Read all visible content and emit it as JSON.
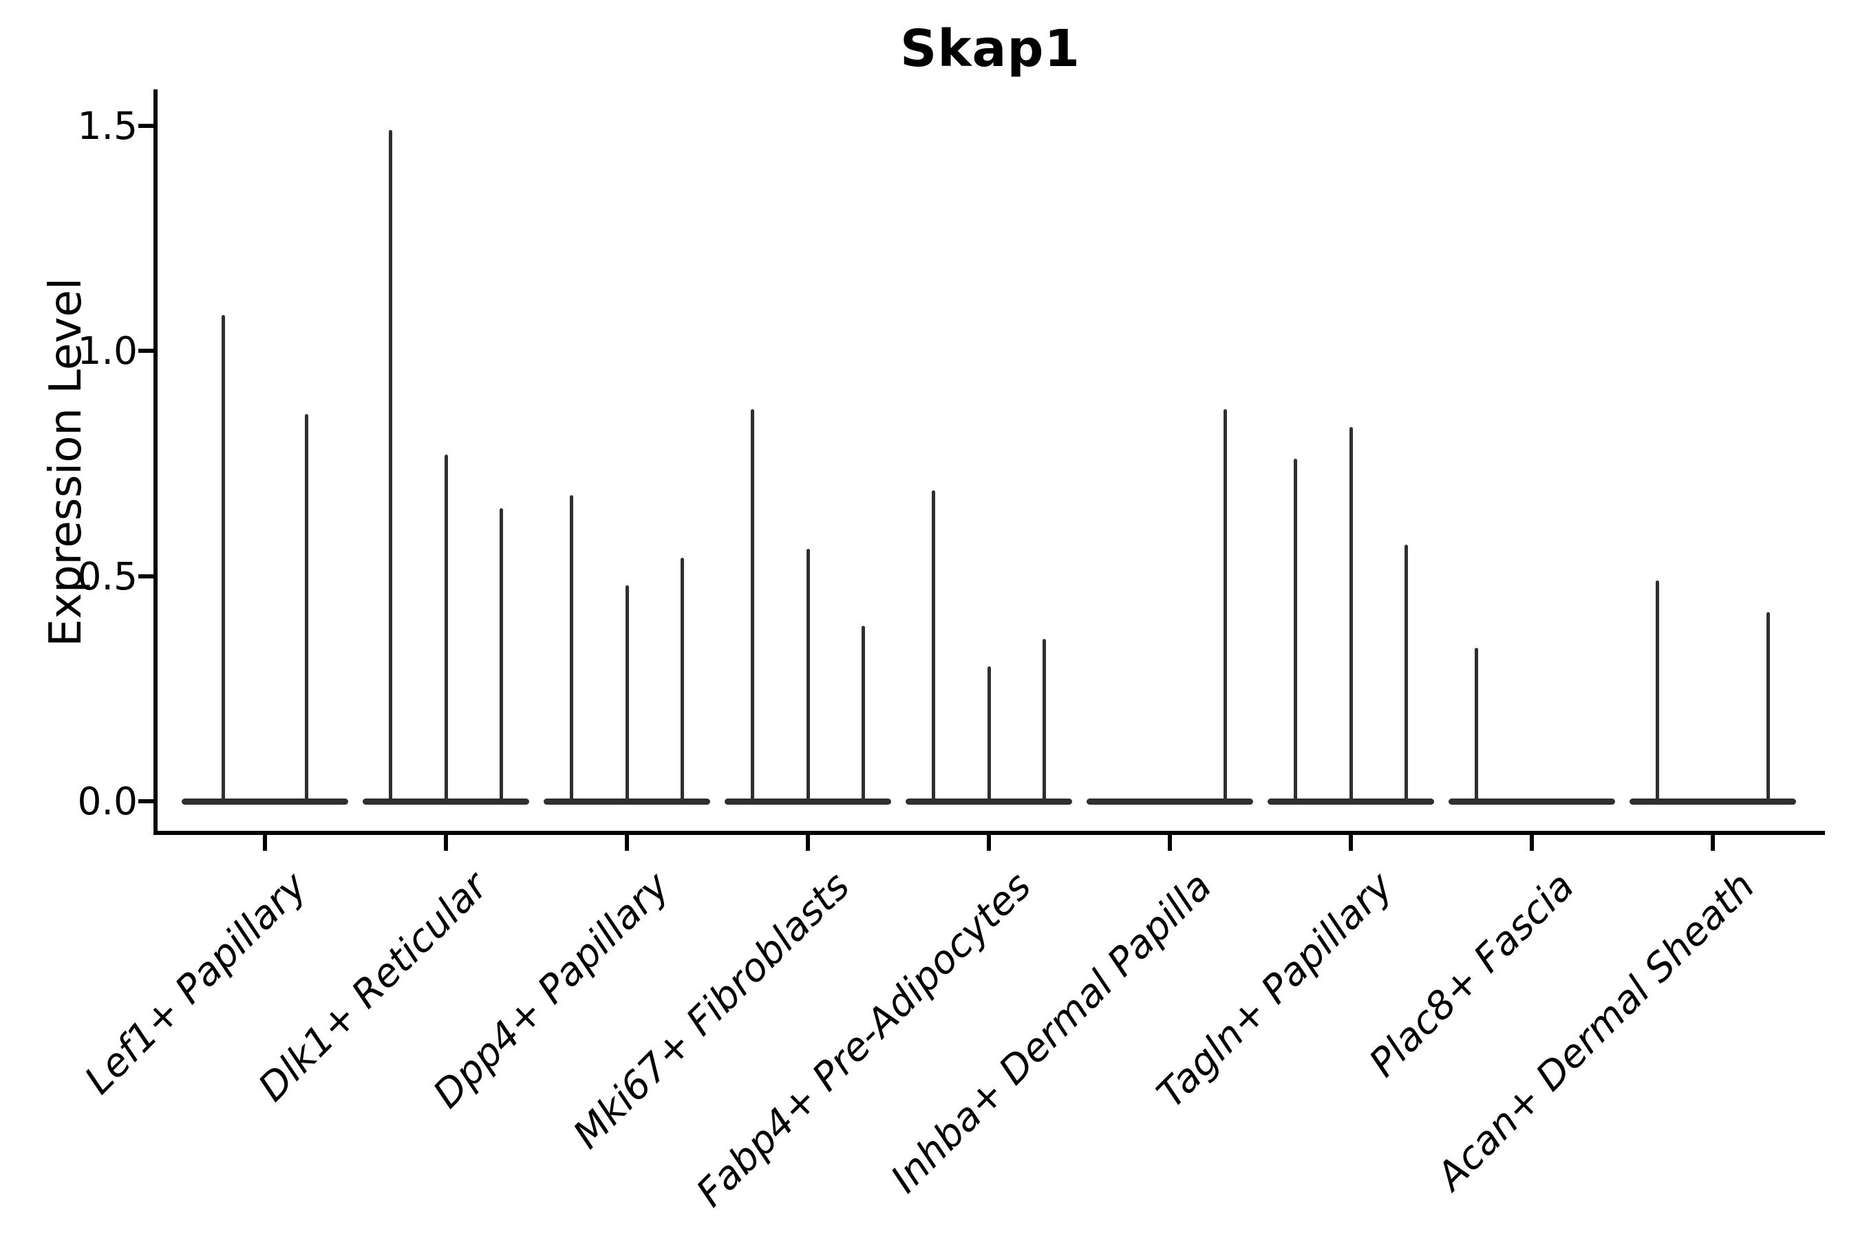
{
  "title": "Skap1",
  "axes": {
    "ylabel": "Expression Level",
    "ytick_labels": [
      "0.0",
      "0.5",
      "1.0",
      "1.5"
    ],
    "ytick_values": [
      0.0,
      0.5,
      1.0,
      1.5
    ]
  },
  "colors": {
    "violin": "#2f2f2f",
    "axis": "#000000",
    "text": "#000000",
    "background": "#ffffff"
  },
  "chart_data": {
    "type": "violin",
    "title": "Skap1",
    "xlabel": "",
    "ylabel": "Expression Level",
    "yticks": [
      0.0,
      0.5,
      1.0,
      1.5
    ],
    "ylim": [
      -0.07,
      1.58
    ],
    "grid": false,
    "legend": "none",
    "description": "Spike-shaped violins: each cell type has 2-3 narrow sub-violins with a flat base at 0; 'peaks' lists the top expression value of each sub-violin spike (null = flat sub-violin with no spike).",
    "categories": [
      "Lef1+ Papillary",
      "Dlk1+ Reticular",
      "Dpp4+ Papillary",
      "Mki67+ Fibroblasts",
      "Fabp4+ Pre-Adipocytes",
      "Inhba+ Dermal Papilla",
      "Tagln+ Papillary",
      "Plac8+ Fascia",
      "Acan+ Dermal Sheath"
    ],
    "groups": [
      {
        "label": "Lef1+ Papillary",
        "sub_violins": 2,
        "peaks": [
          1.08,
          0.86
        ]
      },
      {
        "label": "Dlk1+ Reticular",
        "sub_violins": 3,
        "peaks": [
          1.49,
          0.77,
          0.65
        ]
      },
      {
        "label": "Dpp4+ Papillary",
        "sub_violins": 3,
        "peaks": [
          0.68,
          0.48,
          0.54
        ]
      },
      {
        "label": "Mki67+ Fibroblasts",
        "sub_violins": 3,
        "peaks": [
          0.87,
          0.56,
          0.39
        ]
      },
      {
        "label": "Fabp4+ Pre-Adipocytes",
        "sub_violins": 3,
        "peaks": [
          0.69,
          0.3,
          0.36
        ]
      },
      {
        "label": "Inhba+ Dermal Papilla",
        "sub_violins": 3,
        "peaks": [
          null,
          null,
          0.87
        ]
      },
      {
        "label": "Tagln+ Papillary",
        "sub_violins": 3,
        "peaks": [
          0.76,
          0.83,
          0.57
        ]
      },
      {
        "label": "Plac8+ Fascia",
        "sub_violins": 3,
        "peaks": [
          0.34,
          null,
          null
        ]
      },
      {
        "label": "Acan+ Dermal Sheath",
        "sub_violins": 3,
        "peaks": [
          0.49,
          null,
          0.42
        ]
      }
    ]
  }
}
